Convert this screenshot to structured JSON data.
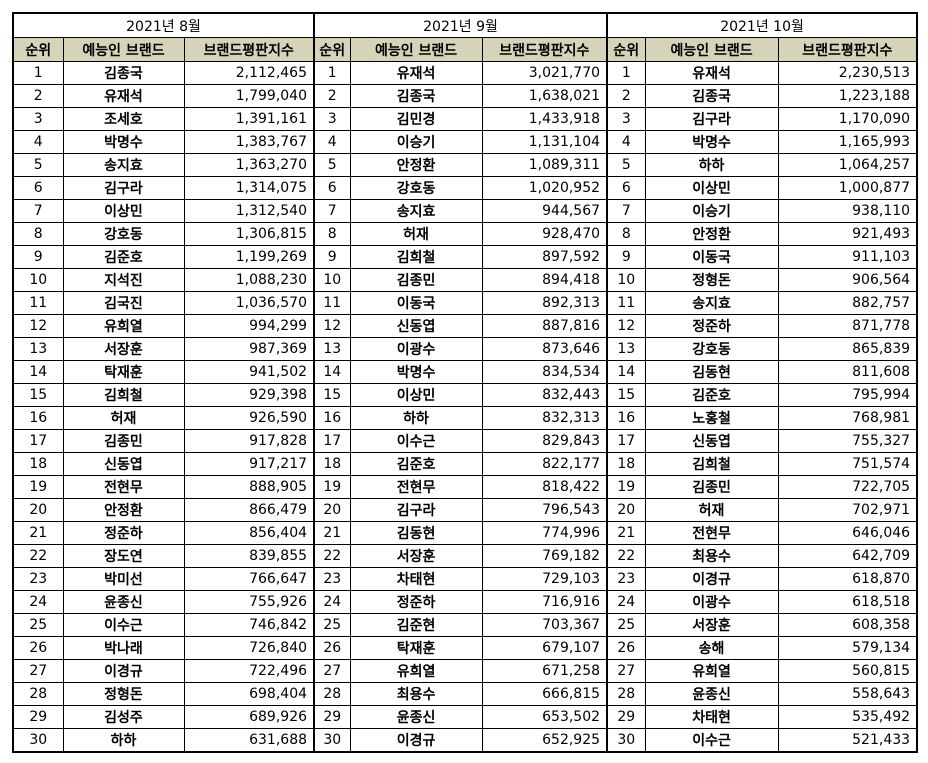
{
  "headers": {
    "rank": "순위",
    "name": "예능인 브랜드",
    "score": "브랜드평판지수"
  },
  "header_bg": "#d6d3b9",
  "months": [
    {
      "title": "2021년 8월",
      "rows": [
        [
          "1",
          "김종국",
          "2,112,465"
        ],
        [
          "2",
          "유재석",
          "1,799,040"
        ],
        [
          "3",
          "조세호",
          "1,391,161"
        ],
        [
          "4",
          "박명수",
          "1,383,767"
        ],
        [
          "5",
          "송지효",
          "1,363,270"
        ],
        [
          "6",
          "김구라",
          "1,314,075"
        ],
        [
          "7",
          "이상민",
          "1,312,540"
        ],
        [
          "8",
          "강호동",
          "1,306,815"
        ],
        [
          "9",
          "김준호",
          "1,199,269"
        ],
        [
          "10",
          "지석진",
          "1,088,230"
        ],
        [
          "11",
          "김국진",
          "1,036,570"
        ],
        [
          "12",
          "유희열",
          "994,299"
        ],
        [
          "13",
          "서장훈",
          "987,369"
        ],
        [
          "14",
          "탁재훈",
          "941,502"
        ],
        [
          "15",
          "김희철",
          "929,398"
        ],
        [
          "16",
          "허재",
          "926,590"
        ],
        [
          "17",
          "김종민",
          "917,828"
        ],
        [
          "18",
          "신동엽",
          "917,217"
        ],
        [
          "19",
          "전현무",
          "888,905"
        ],
        [
          "20",
          "안정환",
          "866,479"
        ],
        [
          "21",
          "정준하",
          "856,404"
        ],
        [
          "22",
          "장도연",
          "839,855"
        ],
        [
          "23",
          "박미선",
          "766,647"
        ],
        [
          "24",
          "윤종신",
          "755,926"
        ],
        [
          "25",
          "이수근",
          "746,842"
        ],
        [
          "26",
          "박나래",
          "726,840"
        ],
        [
          "27",
          "이경규",
          "722,496"
        ],
        [
          "28",
          "정형돈",
          "698,404"
        ],
        [
          "29",
          "김성주",
          "689,926"
        ],
        [
          "30",
          "하하",
          "631,688"
        ]
      ]
    },
    {
      "title": "2021년 9월",
      "rows": [
        [
          "1",
          "유재석",
          "3,021,770"
        ],
        [
          "2",
          "김종국",
          "1,638,021"
        ],
        [
          "3",
          "김민경",
          "1,433,918"
        ],
        [
          "4",
          "이승기",
          "1,131,104"
        ],
        [
          "5",
          "안정환",
          "1,089,311"
        ],
        [
          "6",
          "강호동",
          "1,020,952"
        ],
        [
          "7",
          "송지효",
          "944,567"
        ],
        [
          "8",
          "허재",
          "928,470"
        ],
        [
          "9",
          "김희철",
          "897,592"
        ],
        [
          "10",
          "김종민",
          "894,418"
        ],
        [
          "11",
          "이동국",
          "892,313"
        ],
        [
          "12",
          "신동엽",
          "887,816"
        ],
        [
          "13",
          "이광수",
          "873,646"
        ],
        [
          "14",
          "박명수",
          "834,534"
        ],
        [
          "15",
          "이상민",
          "832,443"
        ],
        [
          "16",
          "하하",
          "832,313"
        ],
        [
          "17",
          "이수근",
          "829,843"
        ],
        [
          "18",
          "김준호",
          "822,177"
        ],
        [
          "19",
          "전현무",
          "818,422"
        ],
        [
          "20",
          "김구라",
          "796,543"
        ],
        [
          "21",
          "김동현",
          "774,996"
        ],
        [
          "22",
          "서장훈",
          "769,182"
        ],
        [
          "23",
          "차태현",
          "729,103"
        ],
        [
          "24",
          "정준하",
          "716,916"
        ],
        [
          "25",
          "김준현",
          "703,367"
        ],
        [
          "26",
          "탁재훈",
          "679,107"
        ],
        [
          "27",
          "유희열",
          "671,258"
        ],
        [
          "28",
          "최용수",
          "666,815"
        ],
        [
          "29",
          "윤종신",
          "653,502"
        ],
        [
          "30",
          "이경규",
          "652,925"
        ]
      ]
    },
    {
      "title": "2021년 10월",
      "rows": [
        [
          "1",
          "유재석",
          "2,230,513"
        ],
        [
          "2",
          "김종국",
          "1,223,188"
        ],
        [
          "3",
          "김구라",
          "1,170,090"
        ],
        [
          "4",
          "박명수",
          "1,165,993"
        ],
        [
          "5",
          "하하",
          "1,064,257"
        ],
        [
          "6",
          "이상민",
          "1,000,877"
        ],
        [
          "7",
          "이승기",
          "938,110"
        ],
        [
          "8",
          "안정환",
          "921,493"
        ],
        [
          "9",
          "이동국",
          "911,103"
        ],
        [
          "10",
          "정형돈",
          "906,564"
        ],
        [
          "11",
          "송지효",
          "882,757"
        ],
        [
          "12",
          "정준하",
          "871,778"
        ],
        [
          "13",
          "강호동",
          "865,839"
        ],
        [
          "14",
          "김동현",
          "811,608"
        ],
        [
          "15",
          "김준호",
          "795,994"
        ],
        [
          "16",
          "노홍철",
          "768,981"
        ],
        [
          "17",
          "신동엽",
          "755,327"
        ],
        [
          "18",
          "김희철",
          "751,574"
        ],
        [
          "19",
          "김종민",
          "722,705"
        ],
        [
          "20",
          "허재",
          "702,971"
        ],
        [
          "21",
          "전현무",
          "646,046"
        ],
        [
          "22",
          "최용수",
          "642,709"
        ],
        [
          "23",
          "이경규",
          "618,870"
        ],
        [
          "24",
          "이광수",
          "618,518"
        ],
        [
          "25",
          "서장훈",
          "608,358"
        ],
        [
          "26",
          "송해",
          "579,134"
        ],
        [
          "27",
          "유희열",
          "560,815"
        ],
        [
          "28",
          "윤종신",
          "558,643"
        ],
        [
          "29",
          "차태현",
          "535,492"
        ],
        [
          "30",
          "이수근",
          "521,433"
        ]
      ]
    }
  ]
}
